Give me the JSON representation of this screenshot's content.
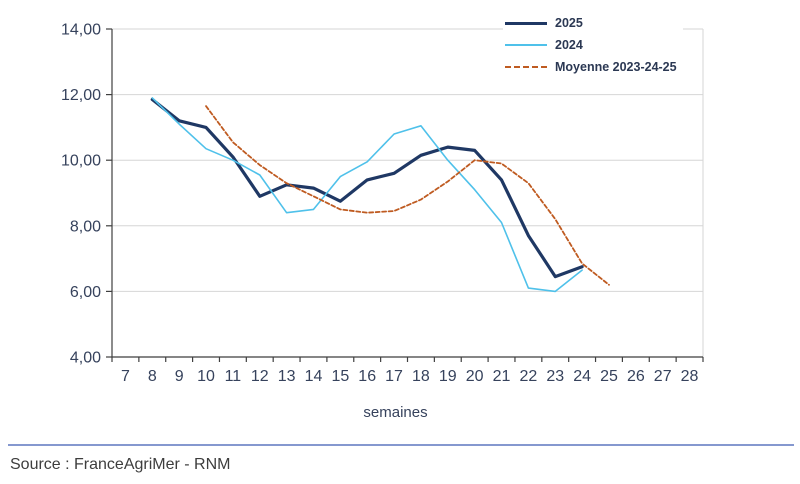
{
  "chart_data": {
    "type": "line",
    "title": "",
    "xlabel": "semaines",
    "ylabel": "",
    "x_ticks": [
      7,
      8,
      9,
      10,
      11,
      12,
      13,
      14,
      15,
      16,
      17,
      18,
      19,
      20,
      21,
      22,
      23,
      24,
      25,
      26,
      27,
      28
    ],
    "y_tick_labels": [
      "14,00",
      "12,00",
      "10,00",
      "8,00",
      "6,00",
      "4,00"
    ],
    "y_tick_values": [
      14,
      12,
      10,
      8,
      6,
      4
    ],
    "ylim": [
      4,
      14
    ],
    "grid": true,
    "legend_position": "top-center",
    "series": [
      {
        "name": "2025",
        "color": "#1F3864",
        "width": 3.2,
        "dash": null,
        "weeks": [
          8,
          9,
          10,
          11,
          12,
          13,
          14,
          15,
          16,
          17,
          18,
          19,
          20,
          21,
          22,
          23,
          24
        ],
        "values": [
          11.85,
          11.2,
          11.0,
          10.1,
          8.9,
          9.25,
          9.15,
          8.75,
          9.4,
          9.6,
          10.15,
          10.4,
          10.3,
          9.4,
          7.7,
          6.45,
          6.75
        ]
      },
      {
        "name": "2024",
        "color": "#4FC1EA",
        "width": 1.6,
        "dash": null,
        "weeks": [
          8,
          9,
          10,
          11,
          12,
          13,
          14,
          15,
          16,
          17,
          18,
          19,
          20,
          21,
          22,
          23,
          24
        ],
        "values": [
          11.9,
          11.1,
          10.35,
          10.0,
          9.55,
          8.4,
          8.5,
          9.5,
          9.95,
          10.8,
          11.05,
          10.0,
          9.1,
          8.1,
          6.1,
          6.0,
          6.65
        ]
      },
      {
        "name": "Moyenne 2023-24-25",
        "color": "#BF5B21",
        "width": 1.8,
        "dash": "4 2.5",
        "weeks": [
          10,
          11,
          12,
          13,
          14,
          15,
          16,
          17,
          18,
          19,
          20,
          21,
          22,
          23,
          24,
          25
        ],
        "values": [
          11.65,
          10.55,
          9.85,
          9.3,
          8.9,
          8.5,
          8.4,
          8.45,
          8.8,
          9.35,
          10.0,
          9.9,
          9.3,
          8.2,
          6.85,
          6.2
        ]
      }
    ],
    "axis_colors": {
      "gridline": "#D6D6D6",
      "axis_line": "#3f3f3f",
      "tick_label": "#36425c"
    }
  },
  "footer": {
    "source": "Source : FranceAgriMer - RNM",
    "divider_color": "#8598cf"
  }
}
